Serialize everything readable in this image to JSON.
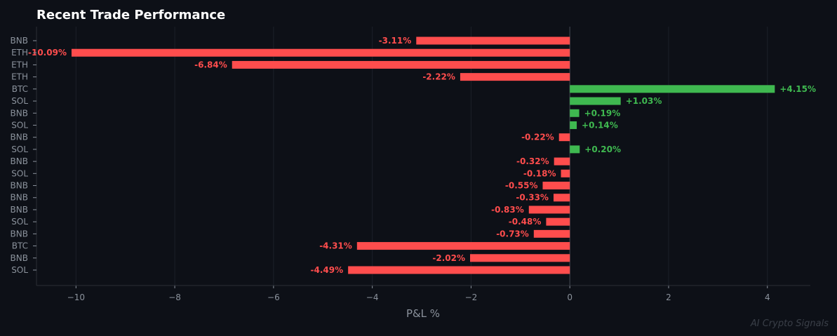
{
  "chart_data": {
    "type": "bar",
    "orientation": "horizontal",
    "title": "Recent Trade Performance",
    "xlabel": "P&L %",
    "ylabel": "",
    "xlim": [
      -10.8,
      4.87
    ],
    "xticks": [
      -10,
      -8,
      -6,
      -4,
      -2,
      0,
      2,
      4
    ],
    "xtick_labels": [
      "−10",
      "−8",
      "−6",
      "−4",
      "−2",
      "0",
      "2",
      "4"
    ],
    "grid": true,
    "categories": [
      "BNB",
      "ETH",
      "ETH",
      "ETH",
      "BTC",
      "SOL",
      "BNB",
      "SOL",
      "BNB",
      "SOL",
      "BNB",
      "SOL",
      "BNB",
      "BNB",
      "BNB",
      "SOL",
      "BNB",
      "BTC",
      "BNB",
      "SOL"
    ],
    "values": [
      -3.11,
      -10.09,
      -6.84,
      -2.22,
      4.15,
      1.03,
      0.19,
      0.14,
      -0.22,
      0.2,
      -0.32,
      -0.18,
      -0.55,
      -0.33,
      -0.83,
      -0.48,
      -0.73,
      -4.31,
      -2.02,
      -4.49
    ],
    "data_labels": [
      "-3.11%",
      "-10.09%",
      "-6.84%",
      "-2.22%",
      "+4.15%",
      "+1.03%",
      "+0.19%",
      "+0.14%",
      "-0.22%",
      "+0.20%",
      "-0.32%",
      "-0.18%",
      "-0.55%",
      "-0.33%",
      "-0.83%",
      "-0.48%",
      "-0.73%",
      "-4.31%",
      "-2.02%",
      "-4.49%"
    ],
    "colors": {
      "positive": "#3fb950",
      "negative": "#ff4d4d",
      "background": "#0d1017"
    }
  },
  "watermark": "AI Crypto Signals"
}
